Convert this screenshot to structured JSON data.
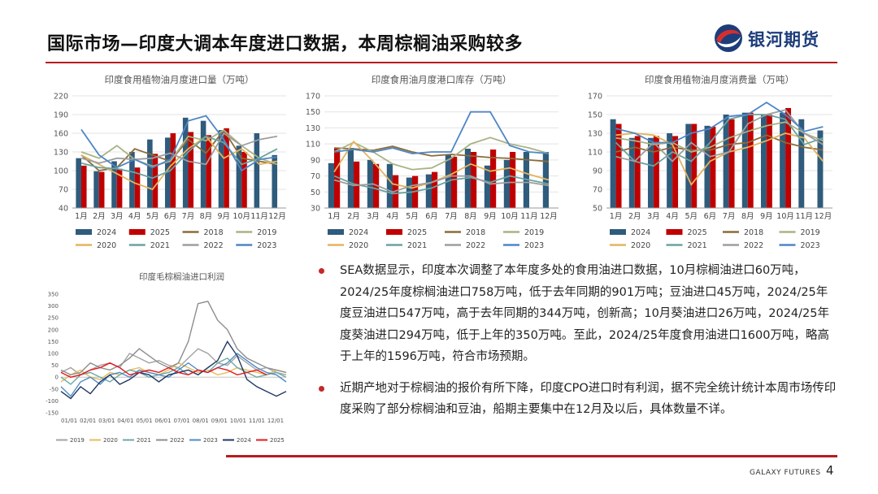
{
  "header": {
    "title": "国际市场—印度大调本年度进口数据，本周棕榈油采购较多",
    "brand": "银河期货",
    "brand_colors": {
      "red": "#d32f2f",
      "blue": "#1d3d7a"
    }
  },
  "footer": {
    "company": "GALAXY FUTURES",
    "page": "4"
  },
  "colors": {
    "2024": "#2f5b7c",
    "2025": "#c00000",
    "2018": "#8b6b3a",
    "2019": "#a9b484",
    "2020": "#e3b45e",
    "2021": "#6aa3a0",
    "2022": "#9e9e9e",
    "2023": "#4f86c6",
    "2019_profit": "#a3a3a3",
    "2020_profit": "#e6bd5d",
    "2021_profit": "#6ea9a3",
    "2022_profit": "#8d8d8d",
    "2023_profit": "#4f8ac6",
    "2024_profit": "#203864",
    "2025_profit": "#e8161c"
  },
  "bullets": [
    "SEA数据显示，印度本次调整了本年度多处的食用油进口数据，10月棕榈油进口60万吨，2024/25年度棕榈油进口758万吨，低于去年同期的901万吨；豆油进口45万吨，2024/25年度豆油进口547万吨，高于去年同期的344万吨，创新高；10月葵油进口26万吨，2024/25年度葵油进口294万吨，低于上年的350万吨。至此，2024/25年度食用油进口1600万吨，略高于上年的1596万吨，符合市场预期。",
    "近期产地对于棕榈油的报价有所下降，印度CPO进口时有利润，据不完全统计统计本周市场传印度采购了部分棕榈油和豆油，船期主要集中在12月及以后，具体数量不详。"
  ],
  "chart_data": [
    {
      "id": "imports",
      "type": "bar",
      "title": "印度食用植物油月度进口量（万吨）",
      "categories": [
        "1月",
        "2月",
        "3月",
        "4月",
        "5月",
        "6月",
        "7月",
        "8月",
        "9月",
        "10月",
        "11月",
        "12月"
      ],
      "ylim": [
        40,
        220
      ],
      "yticks": [
        40,
        70,
        100,
        130,
        160,
        190,
        220
      ],
      "bars": [
        {
          "name": "2024",
          "values": [
            120,
            99,
            115,
            130,
            150,
            153,
            185,
            180,
            165,
            140,
            160,
            125
          ]
        },
        {
          "name": "2025",
          "values": [
            108,
            98,
            103,
            105,
            127,
            160,
            162,
            157,
            168,
            130,
            null,
            null
          ]
        }
      ],
      "lines": [
        {
          "name": "2018",
          "values": [
            125,
            100,
            105,
            135,
            125,
            115,
            150,
            128,
            165,
            120,
            115,
            110
          ]
        },
        {
          "name": "2019",
          "values": [
            130,
            120,
            140,
            118,
            107,
            115,
            155,
            148,
            165,
            140,
            120,
            110
          ]
        },
        {
          "name": "2020",
          "values": [
            125,
            110,
            95,
            80,
            70,
            107,
            135,
            155,
            120,
            135,
            110,
            115
          ]
        },
        {
          "name": "2021",
          "values": [
            112,
            105,
            103,
            97,
            88,
            100,
            130,
            155,
            145,
            110,
            120,
            135
          ]
        },
        {
          "name": "2022",
          "values": [
            120,
            112,
            120,
            118,
            120,
            128,
            115,
            110,
            160,
            140,
            150,
            155
          ]
        },
        {
          "name": "2023",
          "values": [
            166,
            125,
            105,
            118,
            105,
            118,
            180,
            188,
            150,
            100,
            118,
            122
          ]
        }
      ],
      "legend": [
        "2024",
        "2025",
        "2018",
        "2019",
        "2020",
        "2021",
        "2022",
        "2023"
      ]
    },
    {
      "id": "port_stock",
      "type": "bar",
      "title": "印度食用油月度港口库存（万吨）",
      "categories": [
        "1月",
        "2月",
        "3月",
        "4月",
        "5月",
        "6月",
        "7月",
        "8月",
        "9月",
        "10月",
        "11月",
        "12月"
      ],
      "ylim": [
        30,
        170
      ],
      "yticks": [
        30,
        50,
        70,
        90,
        110,
        130,
        150,
        170
      ],
      "bars": [
        {
          "name": "2024",
          "values": [
            86,
            105,
            90,
            85,
            68,
            72,
            96,
            104,
            83,
            90,
            100,
            100
          ]
        },
        {
          "name": "2025",
          "values": [
            105,
            88,
            85,
            71,
            70,
            75,
            94,
            100,
            103,
            100,
            null,
            null
          ]
        }
      ],
      "lines": [
        {
          "name": "2018",
          "values": [
            105,
            104,
            102,
            107,
            100,
            95,
            97,
            95,
            93,
            92,
            90,
            88
          ]
        },
        {
          "name": "2019",
          "values": [
            100,
            112,
            100,
            85,
            78,
            80,
            92,
            110,
            118,
            110,
            105,
            98
          ]
        },
        {
          "name": "2020",
          "values": [
            75,
            113,
            88,
            60,
            55,
            62,
            72,
            85,
            76,
            80,
            72,
            65
          ]
        },
        {
          "name": "2021",
          "values": [
            70,
            60,
            55,
            48,
            50,
            55,
            65,
            68,
            62,
            70,
            65,
            60
          ]
        },
        {
          "name": "2022",
          "values": [
            65,
            58,
            60,
            50,
            58,
            62,
            70,
            70,
            60,
            62,
            62,
            58
          ]
        },
        {
          "name": "2023",
          "values": [
            100,
            103,
            100,
            105,
            98,
            100,
            100,
            150,
            150,
            108,
            100,
            98
          ]
        }
      ],
      "legend": [
        "2024",
        "2025",
        "2018",
        "2019",
        "2020",
        "2021",
        "2022",
        "2023"
      ]
    },
    {
      "id": "consumption",
      "type": "bar",
      "title": "印度食用植物油月度消费量（万吨）",
      "categories": [
        "1月",
        "2月",
        "3月",
        "4月",
        "5月",
        "6月",
        "7月",
        "8月",
        "9月",
        "10月",
        "11月",
        "12月"
      ],
      "ylim": [
        50,
        170
      ],
      "yticks": [
        50,
        70,
        90,
        110,
        130,
        150,
        170
      ],
      "bars": [
        {
          "name": "2024",
          "values": [
            145,
            125,
            125,
            130,
            140,
            138,
            150,
            152,
            150,
            152,
            145,
            133
          ]
        },
        {
          "name": "2025",
          "values": [
            140,
            127,
            127,
            127,
            140,
            137,
            145,
            152,
            150,
            157,
            null,
            null
          ]
        }
      ],
      "lines": [
        {
          "name": "2018",
          "values": [
            110,
            115,
            110,
            115,
            112,
            112,
            118,
            120,
            128,
            120,
            115,
            112
          ]
        },
        {
          "name": "2019",
          "values": [
            125,
            122,
            118,
            120,
            110,
            115,
            125,
            132,
            138,
            142,
            130,
            122
          ]
        },
        {
          "name": "2020",
          "values": [
            128,
            130,
            128,
            118,
            75,
            100,
            110,
            115,
            122,
            130,
            125,
            100
          ]
        },
        {
          "name": "2021",
          "values": [
            120,
            100,
            95,
            110,
            100,
            120,
            145,
            150,
            150,
            145,
            118,
            125
          ]
        },
        {
          "name": "2022",
          "values": [
            105,
            100,
            120,
            100,
            120,
            105,
            110,
            140,
            150,
            155,
            130,
            118
          ]
        },
        {
          "name": "2023",
          "values": [
            135,
            130,
            120,
            120,
            130,
            135,
            148,
            150,
            163,
            150,
            132,
            137
          ]
        }
      ],
      "legend": [
        "2024",
        "2025",
        "2018",
        "2019",
        "2020",
        "2021",
        "2022",
        "2023"
      ]
    },
    {
      "id": "profit",
      "type": "line",
      "title": "印度毛棕榈油进口利润",
      "xticks": [
        "01/01",
        "02/01",
        "03/01",
        "04/01",
        "05/01",
        "06/01",
        "07/01",
        "08/01",
        "09/01",
        "10/01",
        "11/01",
        "12/01"
      ],
      "ylim": [
        -150,
        350
      ],
      "yticks": [
        -150,
        -100,
        -50,
        0,
        50,
        100,
        150,
        200,
        250,
        300,
        350
      ],
      "series": [
        {
          "name": "2019",
          "values": [
            20,
            40,
            10,
            30,
            50,
            60,
            40,
            100,
            80,
            60,
            70,
            50,
            40,
            80,
            120,
            100,
            60,
            50,
            90,
            60,
            30,
            40,
            20,
            10
          ]
        },
        {
          "name": "2020",
          "values": [
            -20,
            10,
            30,
            0,
            -10,
            20,
            10,
            30,
            40,
            20,
            10,
            30,
            60,
            40,
            20,
            30,
            10,
            20,
            40,
            30,
            20,
            10,
            30,
            20
          ]
        },
        {
          "name": "2021",
          "values": [
            0,
            -30,
            10,
            20,
            0,
            -20,
            10,
            30,
            20,
            0,
            10,
            20,
            40,
            10,
            30,
            20,
            60,
            80,
            40,
            20,
            0,
            10,
            20,
            0
          ]
        },
        {
          "name": "2022",
          "values": [
            30,
            10,
            20,
            60,
            40,
            30,
            50,
            80,
            120,
            90,
            60,
            40,
            60,
            150,
            310,
            320,
            240,
            200,
            120,
            80,
            60,
            40,
            30,
            20
          ]
        },
        {
          "name": "2023",
          "values": [
            -40,
            -80,
            -20,
            0,
            -30,
            10,
            20,
            0,
            30,
            20,
            10,
            0,
            30,
            60,
            30,
            20,
            40,
            60,
            100,
            70,
            40,
            20,
            10,
            -20
          ]
        },
        {
          "name": "2024",
          "values": [
            -60,
            -90,
            -40,
            -70,
            -20,
            10,
            -30,
            -10,
            20,
            10,
            -20,
            10,
            20,
            30,
            10,
            40,
            70,
            150,
            90,
            -10,
            -40,
            -60,
            -80,
            -60
          ]
        },
        {
          "name": "2025",
          "values": [
            20,
            0,
            10,
            30,
            40,
            60,
            40,
            10,
            20,
            30,
            20,
            40,
            20,
            10,
            30,
            20,
            40,
            30,
            10,
            20,
            30,
            10,
            null,
            null
          ]
        }
      ],
      "legend": [
        "2019",
        "2020",
        "2021",
        "2022",
        "2023",
        "2024",
        "2025"
      ]
    }
  ]
}
